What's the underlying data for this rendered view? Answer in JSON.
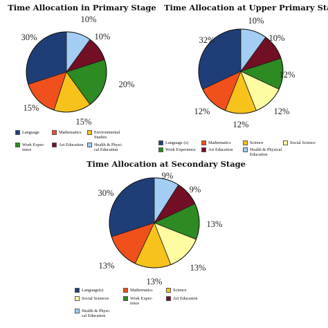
{
  "colors": {
    "language": "#1f3e78",
    "mathematics": "#f0501c",
    "science": "#f7c21c",
    "social_sciences": "#fefca0",
    "work_experience": "#2e8a22",
    "art_education": "#720f24",
    "health": "#a3cdf2"
  },
  "chart_data": [
    {
      "type": "pie",
      "title": "Time Allocation in Primary Stage",
      "slices": [
        {
          "name": "Language",
          "value": 30,
          "label": "30%",
          "color": "#1f3e78"
        },
        {
          "name": "Mathematics",
          "value": 15,
          "label": "15%",
          "color": "#f0501c"
        },
        {
          "name": "Environmental\nStudies",
          "value": 15,
          "label": "15%",
          "color": "#f7c21c"
        },
        {
          "name": "Work Exper-\nience",
          "value": 20,
          "label": "20%",
          "color": "#2e8a22"
        },
        {
          "name": "Art Education",
          "value": 10,
          "label": "10%",
          "color": "#720f24"
        },
        {
          "name": "Health & Physi-\ncal Education",
          "value": 10,
          "label": "10%",
          "color": "#a3cdf2"
        }
      ]
    },
    {
      "type": "pie",
      "title": "Time Allocation at Upper Primary Stage",
      "slices": [
        {
          "name": "Language (s)",
          "value": 32,
          "label": "32%",
          "color": "#1f3e78"
        },
        {
          "name": "Mathematics",
          "value": 12,
          "label": "12%",
          "color": "#f0501c"
        },
        {
          "name": "Science",
          "value": 12,
          "label": "12%",
          "color": "#f7c21c"
        },
        {
          "name": "Social Science",
          "value": 12,
          "label": "12%",
          "color": "#fefca0"
        },
        {
          "name": "Work Experience",
          "value": 12,
          "label": "12%",
          "color": "#2e8a22"
        },
        {
          "name": "Art Education",
          "value": 10,
          "label": "10%",
          "color": "#720f24"
        },
        {
          "name": "Health & Physical\nEducation",
          "value": 10,
          "label": "10%",
          "color": "#a3cdf2"
        }
      ]
    },
    {
      "type": "pie",
      "title": "Time Allocation at Secondary Stage",
      "slices": [
        {
          "name": "Language(s)",
          "value": 30,
          "label": "30%",
          "color": "#1f3e78"
        },
        {
          "name": "Mathematics",
          "value": 13,
          "label": "13%",
          "color": "#f0501c"
        },
        {
          "name": "Science",
          "value": 13,
          "label": "13%",
          "color": "#f7c21c"
        },
        {
          "name": "Social Sciences",
          "value": 13,
          "label": "13%",
          "color": "#fefca0"
        },
        {
          "name": "Work Exper-\nience",
          "value": 13,
          "label": "13%",
          "color": "#2e8a22"
        },
        {
          "name": "Art Education",
          "value": 9,
          "label": "9%",
          "color": "#720f24"
        },
        {
          "name": "Health & Physi-\ncal Education",
          "value": 9,
          "label": "9%",
          "color": "#a3cdf2"
        }
      ]
    }
  ]
}
